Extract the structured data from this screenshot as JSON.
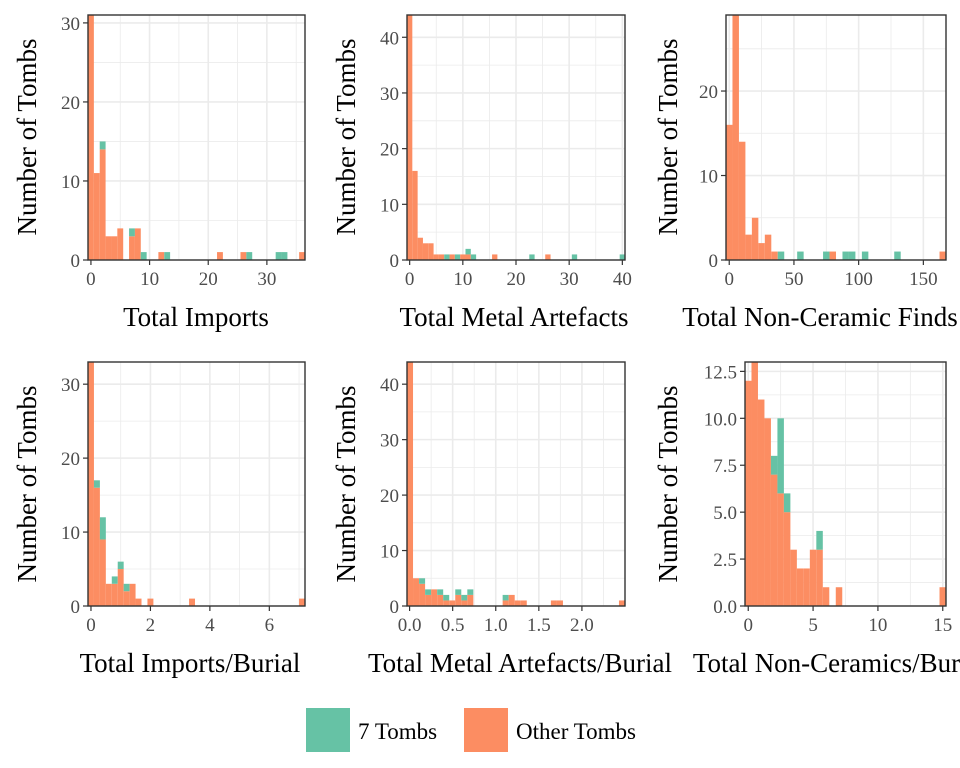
{
  "colors": {
    "seven_tombs": "#66C2A5",
    "other_tombs": "#FC8D62",
    "grid": "#EBEBEB",
    "frame": "#333333"
  },
  "legend": [
    {
      "key": "seven",
      "label": "7 Tombs",
      "color": "#66C2A5"
    },
    {
      "key": "other",
      "label": "Other Tombs",
      "color": "#FC8D62"
    }
  ],
  "chart_data": [
    {
      "type": "bar",
      "title": "",
      "xlabel": "Total Imports",
      "ylabel": "Number of Tombs",
      "xlim": [
        -0.5,
        36.5
      ],
      "ylim": [
        0,
        31
      ],
      "xticks": [
        0,
        10,
        20,
        30
      ],
      "xtick_labels": [
        "0",
        "10",
        "20",
        "30"
      ],
      "yticks": [
        0,
        10,
        20,
        30
      ],
      "ytick_labels": [
        "0",
        "10",
        "20",
        "30"
      ],
      "bins": [
        {
          "x0": -0.5,
          "x1": 0.5,
          "other": 31,
          "seven": 0
        },
        {
          "x0": 0.5,
          "x1": 1.5,
          "other": 11,
          "seven": 0
        },
        {
          "x0": 1.5,
          "x1": 2.5,
          "other": 14,
          "seven": 1
        },
        {
          "x0": 2.5,
          "x1": 3.5,
          "other": 3,
          "seven": 0
        },
        {
          "x0": 3.5,
          "x1": 4.5,
          "other": 3,
          "seven": 0
        },
        {
          "x0": 4.5,
          "x1": 5.5,
          "other": 4,
          "seven": 0
        },
        {
          "x0": 6.5,
          "x1": 7.5,
          "other": 3,
          "seven": 1
        },
        {
          "x0": 7.5,
          "x1": 8.5,
          "other": 4,
          "seven": 0
        },
        {
          "x0": 8.5,
          "x1": 9.5,
          "other": 0,
          "seven": 1
        },
        {
          "x0": 11.5,
          "x1": 12.5,
          "other": 1,
          "seven": 0
        },
        {
          "x0": 12.5,
          "x1": 13.5,
          "other": 0,
          "seven": 1
        },
        {
          "x0": 21.5,
          "x1": 22.5,
          "other": 1,
          "seven": 0
        },
        {
          "x0": 25.5,
          "x1": 26.5,
          "other": 1,
          "seven": 0
        },
        {
          "x0": 26.5,
          "x1": 27.5,
          "other": 0,
          "seven": 1
        },
        {
          "x0": 31.5,
          "x1": 32.5,
          "other": 0,
          "seven": 1
        },
        {
          "x0": 32.5,
          "x1": 33.5,
          "other": 0,
          "seven": 1
        },
        {
          "x0": 35.5,
          "x1": 36.5,
          "other": 1,
          "seven": 0
        }
      ]
    },
    {
      "type": "bar",
      "title": "",
      "xlabel": "Total Metal Artefacts",
      "ylabel": "Number of Tombs",
      "xlim": [
        -0.5,
        40.5
      ],
      "ylim": [
        0,
        44
      ],
      "xticks": [
        0,
        10,
        20,
        30,
        40
      ],
      "xtick_labels": [
        "0",
        "10",
        "20",
        "30",
        "40"
      ],
      "yticks": [
        0,
        10,
        20,
        30,
        40
      ],
      "ytick_labels": [
        "0",
        "10",
        "20",
        "30",
        "40"
      ],
      "bins": [
        {
          "x0": -0.5,
          "x1": 0.5,
          "other": 44,
          "seven": 0
        },
        {
          "x0": 0.5,
          "x1": 1.5,
          "other": 16,
          "seven": 0
        },
        {
          "x0": 1.5,
          "x1": 2.5,
          "other": 4,
          "seven": 0
        },
        {
          "x0": 2.5,
          "x1": 3.5,
          "other": 3,
          "seven": 0
        },
        {
          "x0": 3.5,
          "x1": 4.5,
          "other": 3,
          "seven": 0
        },
        {
          "x0": 4.5,
          "x1": 5.5,
          "other": 1,
          "seven": 0
        },
        {
          "x0": 5.5,
          "x1": 6.5,
          "other": 1,
          "seven": 0
        },
        {
          "x0": 6.5,
          "x1": 7.5,
          "other": 0,
          "seven": 1
        },
        {
          "x0": 7.5,
          "x1": 8.5,
          "other": 1,
          "seven": 0
        },
        {
          "x0": 8.5,
          "x1": 9.5,
          "other": 0,
          "seven": 1
        },
        {
          "x0": 9.5,
          "x1": 10.5,
          "other": 1,
          "seven": 0
        },
        {
          "x0": 10.5,
          "x1": 11.5,
          "other": 1,
          "seven": 1
        },
        {
          "x0": 11.5,
          "x1": 12.5,
          "other": 0,
          "seven": 1
        },
        {
          "x0": 15.5,
          "x1": 16.5,
          "other": 1,
          "seven": 0
        },
        {
          "x0": 22.5,
          "x1": 23.5,
          "other": 0,
          "seven": 1
        },
        {
          "x0": 25.5,
          "x1": 26.5,
          "other": 1,
          "seven": 0
        },
        {
          "x0": 30.5,
          "x1": 31.5,
          "other": 0,
          "seven": 1
        },
        {
          "x0": 39.5,
          "x1": 40.5,
          "other": 0,
          "seven": 1
        }
      ]
    },
    {
      "type": "bar",
      "title": "",
      "xlabel": "Total Non-Ceramic Finds",
      "ylabel": "Number of Tombs",
      "xlim": [
        -2.5,
        167.5
      ],
      "ylim": [
        0,
        29
      ],
      "xticks": [
        0,
        50,
        100,
        150
      ],
      "xtick_labels": [
        "0",
        "50",
        "100",
        "150"
      ],
      "yticks": [
        0,
        10,
        20
      ],
      "ytick_labels": [
        "0",
        "10",
        "20"
      ],
      "bins": [
        {
          "x0": -2.5,
          "x1": 2.5,
          "other": 16,
          "seven": 0
        },
        {
          "x0": 2.5,
          "x1": 7.5,
          "other": 29,
          "seven": 0
        },
        {
          "x0": 7.5,
          "x1": 12.5,
          "other": 14,
          "seven": 0
        },
        {
          "x0": 12.5,
          "x1": 17.5,
          "other": 3,
          "seven": 0
        },
        {
          "x0": 17.5,
          "x1": 22.5,
          "other": 5,
          "seven": 0
        },
        {
          "x0": 22.5,
          "x1": 27.5,
          "other": 2,
          "seven": 0
        },
        {
          "x0": 27.5,
          "x1": 32.5,
          "other": 3,
          "seven": 0
        },
        {
          "x0": 32.5,
          "x1": 37.5,
          "other": 1,
          "seven": 0
        },
        {
          "x0": 37.5,
          "x1": 42.5,
          "other": 0,
          "seven": 1
        },
        {
          "x0": 52.5,
          "x1": 57.5,
          "other": 0,
          "seven": 1
        },
        {
          "x0": 72.5,
          "x1": 77.5,
          "other": 0,
          "seven": 1
        },
        {
          "x0": 77.5,
          "x1": 82.5,
          "other": 1,
          "seven": 0
        },
        {
          "x0": 87.5,
          "x1": 92.5,
          "other": 0,
          "seven": 1
        },
        {
          "x0": 92.5,
          "x1": 97.5,
          "other": 0,
          "seven": 1
        },
        {
          "x0": 102.5,
          "x1": 107.5,
          "other": 0,
          "seven": 1
        },
        {
          "x0": 127.5,
          "x1": 132.5,
          "other": 0,
          "seven": 1
        },
        {
          "x0": 162.5,
          "x1": 167.5,
          "other": 1,
          "seven": 0
        }
      ]
    },
    {
      "type": "bar",
      "title": "",
      "xlabel": "Total Imports/Burial",
      "ylabel": "Number of Tombs",
      "xlim": [
        -0.1,
        7.2
      ],
      "ylim": [
        0,
        33
      ],
      "xticks": [
        0,
        2,
        4,
        6
      ],
      "xtick_labels": [
        "0",
        "2",
        "4",
        "6"
      ],
      "yticks": [
        0,
        10,
        20,
        30
      ],
      "ytick_labels": [
        "0",
        "10",
        "20",
        "30"
      ],
      "bins": [
        {
          "x0": -0.1,
          "x1": 0.1,
          "other": 33,
          "seven": 0
        },
        {
          "x0": 0.1,
          "x1": 0.3,
          "other": 16,
          "seven": 1
        },
        {
          "x0": 0.3,
          "x1": 0.5,
          "other": 9,
          "seven": 3
        },
        {
          "x0": 0.5,
          "x1": 0.7,
          "other": 3,
          "seven": 0
        },
        {
          "x0": 0.7,
          "x1": 0.9,
          "other": 3,
          "seven": 1
        },
        {
          "x0": 0.9,
          "x1": 1.1,
          "other": 5,
          "seven": 1
        },
        {
          "x0": 1.1,
          "x1": 1.3,
          "other": 2,
          "seven": 1
        },
        {
          "x0": 1.3,
          "x1": 1.5,
          "other": 3,
          "seven": 0
        },
        {
          "x0": 1.5,
          "x1": 1.7,
          "other": 1,
          "seven": 0
        },
        {
          "x0": 1.9,
          "x1": 2.1,
          "other": 1,
          "seven": 0
        },
        {
          "x0": 3.3,
          "x1": 3.5,
          "other": 1,
          "seven": 0
        },
        {
          "x0": 7.0,
          "x1": 7.2,
          "other": 1,
          "seven": 0
        }
      ]
    },
    {
      "type": "bar",
      "title": "",
      "xlabel": "Total Metal Artefacts/Burial",
      "ylabel": "Number of Tombs",
      "xlim": [
        -0.03,
        2.5
      ],
      "ylim": [
        0,
        44
      ],
      "xticks": [
        0,
        0.5,
        1.0,
        1.5,
        2.0
      ],
      "xtick_labels": [
        "0.0",
        "0.5",
        "1.0",
        "1.5",
        "2.0"
      ],
      "yticks": [
        0,
        10,
        20,
        30,
        40
      ],
      "ytick_labels": [
        "0",
        "10",
        "20",
        "30",
        "40"
      ],
      "bins": [
        {
          "x0": -0.03,
          "x1": 0.04,
          "other": 44,
          "seven": 0
        },
        {
          "x0": 0.04,
          "x1": 0.11,
          "other": 5,
          "seven": 0
        },
        {
          "x0": 0.11,
          "x1": 0.18,
          "other": 4,
          "seven": 1
        },
        {
          "x0": 0.18,
          "x1": 0.25,
          "other": 2,
          "seven": 1
        },
        {
          "x0": 0.25,
          "x1": 0.32,
          "other": 3,
          "seven": 0
        },
        {
          "x0": 0.32,
          "x1": 0.39,
          "other": 2,
          "seven": 1
        },
        {
          "x0": 0.39,
          "x1": 0.46,
          "other": 1,
          "seven": 1
        },
        {
          "x0": 0.46,
          "x1": 0.53,
          "other": 1,
          "seven": 0
        },
        {
          "x0": 0.53,
          "x1": 0.6,
          "other": 2,
          "seven": 1
        },
        {
          "x0": 0.6,
          "x1": 0.67,
          "other": 1,
          "seven": 1
        },
        {
          "x0": 0.67,
          "x1": 0.74,
          "other": 2,
          "seven": 1
        },
        {
          "x0": 1.08,
          "x1": 1.15,
          "other": 1,
          "seven": 1
        },
        {
          "x0": 1.15,
          "x1": 1.22,
          "other": 2,
          "seven": 0
        },
        {
          "x0": 1.22,
          "x1": 1.29,
          "other": 1,
          "seven": 0
        },
        {
          "x0": 1.29,
          "x1": 1.36,
          "other": 1,
          "seven": 0
        },
        {
          "x0": 1.64,
          "x1": 1.71,
          "other": 1,
          "seven": 0
        },
        {
          "x0": 1.71,
          "x1": 1.78,
          "other": 1,
          "seven": 0
        },
        {
          "x0": 2.43,
          "x1": 2.5,
          "other": 1,
          "seven": 0
        }
      ]
    },
    {
      "type": "bar",
      "title": "",
      "xlabel": "Total Non-Ceramics/Burial",
      "ylabel": "Number of Tombs",
      "xlim": [
        -0.25,
        15.25
      ],
      "ylim": [
        0,
        13
      ],
      "xticks": [
        0,
        5,
        10,
        15
      ],
      "xtick_labels": [
        "0",
        "5",
        "10",
        "15"
      ],
      "yticks": [
        0,
        2.5,
        5,
        7.5,
        10,
        12.5
      ],
      "ytick_labels": [
        "0.0",
        "2.5",
        "5.0",
        "7.5",
        "10.0",
        "12.5"
      ],
      "bins": [
        {
          "x0": -0.25,
          "x1": 0.25,
          "other": 12,
          "seven": 0
        },
        {
          "x0": 0.25,
          "x1": 0.75,
          "other": 13,
          "seven": 0
        },
        {
          "x0": 0.75,
          "x1": 1.25,
          "other": 11,
          "seven": 0
        },
        {
          "x0": 1.25,
          "x1": 1.75,
          "other": 10,
          "seven": 0
        },
        {
          "x0": 1.75,
          "x1": 2.25,
          "other": 7,
          "seven": 1
        },
        {
          "x0": 2.25,
          "x1": 2.75,
          "other": 6,
          "seven": 4
        },
        {
          "x0": 2.75,
          "x1": 3.25,
          "other": 5,
          "seven": 1
        },
        {
          "x0": 3.25,
          "x1": 3.75,
          "other": 3,
          "seven": 0
        },
        {
          "x0": 3.75,
          "x1": 4.25,
          "other": 2,
          "seven": 0
        },
        {
          "x0": 4.25,
          "x1": 4.75,
          "other": 2,
          "seven": 0
        },
        {
          "x0": 4.75,
          "x1": 5.25,
          "other": 3,
          "seven": 0
        },
        {
          "x0": 5.25,
          "x1": 5.75,
          "other": 3,
          "seven": 1
        },
        {
          "x0": 5.75,
          "x1": 6.25,
          "other": 1,
          "seven": 0
        },
        {
          "x0": 6.25,
          "x1": 6.75,
          "other": 0,
          "seven": 0
        },
        {
          "x0": 6.75,
          "x1": 7.25,
          "other": 1,
          "seven": 0
        },
        {
          "x0": 14.75,
          "x1": 15.25,
          "other": 1,
          "seven": 0
        }
      ]
    }
  ]
}
